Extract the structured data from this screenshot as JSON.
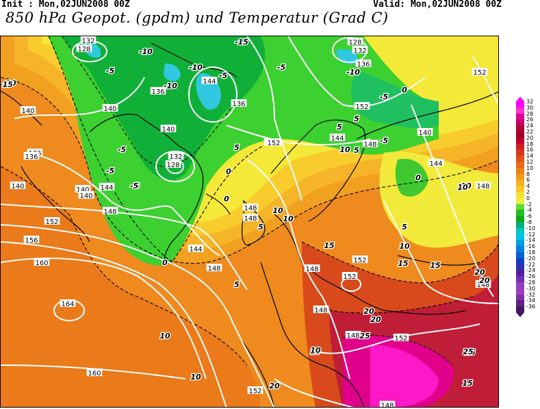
{
  "header": {
    "init": "Init : Mon,02JUN2008 00Z",
    "valid": "Valid: Mon,02JUN2008 00Z",
    "title": "850 hPa Geopot. (gpdm) und Temperatur (Grad C)"
  },
  "legend": {
    "levels": [
      "32",
      "30",
      "28",
      "26",
      "24",
      "22",
      "20",
      "18",
      "16",
      "14",
      "12",
      "10",
      "8",
      "6",
      "4",
      "2",
      "0",
      "-2",
      "-4",
      "-6",
      "-8",
      "-10",
      "-12",
      "-14",
      "-16",
      "-18",
      "-20",
      "-22",
      "-24",
      "-26",
      "-28",
      "-30",
      "-32",
      "-34",
      "-36"
    ],
    "colors": [
      "#ff00ff",
      "#ff33cc",
      "#e0009a",
      "#cc0066",
      "#b0003c",
      "#a00020",
      "#c00030",
      "#cc2020",
      "#d83818",
      "#e05018",
      "#e86818",
      "#ee8018",
      "#f09a1c",
      "#f4b020",
      "#f8c828",
      "#f8e030",
      "#e8f040",
      "#60d830",
      "#20c020",
      "#10a818",
      "#00b080",
      "#00c8c0",
      "#00c0e8",
      "#00a0e0",
      "#0080e0",
      "#0060d0",
      "#1040c0",
      "#3030b0",
      "#5020a0",
      "#7030b0",
      "#9040c0",
      "#a040c0",
      "#8030a0",
      "#602080",
      "#401860"
    ]
  },
  "geopotential_labels": [
    "128",
    "132",
    "136",
    "140",
    "144",
    "148",
    "152",
    "156",
    "160",
    "164"
  ],
  "temperature_labels": [
    "-15",
    "-10",
    "-5",
    "0",
    "5",
    "10",
    "15",
    "20",
    "25"
  ],
  "map_labels": [
    {
      "text": "132",
      "k": "g"
    },
    {
      "text": "128",
      "k": "g"
    },
    {
      "text": "128",
      "k": "g"
    },
    {
      "text": "132",
      "k": "g"
    },
    {
      "text": "136",
      "k": "g"
    },
    {
      "text": "152",
      "k": "g"
    },
    {
      "text": "136",
      "k": "g"
    },
    {
      "text": "144",
      "k": "g"
    },
    {
      "text": "136",
      "k": "g"
    },
    {
      "text": "140",
      "k": "g"
    },
    {
      "text": "140",
      "k": "g"
    },
    {
      "text": "140",
      "k": "g"
    },
    {
      "text": "140",
      "k": "g"
    },
    {
      "text": "136",
      "k": "g"
    },
    {
      "text": "132",
      "k": "g"
    },
    {
      "text": "128",
      "k": "g"
    },
    {
      "text": "152",
      "k": "g"
    },
    {
      "text": "144",
      "k": "g"
    },
    {
      "text": "148",
      "k": "g"
    },
    {
      "text": "140",
      "k": "g"
    },
    {
      "text": "144",
      "k": "g"
    },
    {
      "text": "152",
      "k": "g"
    },
    {
      "text": "148",
      "k": "g"
    },
    {
      "text": "136",
      "k": "g"
    },
    {
      "text": "140",
      "k": "g"
    },
    {
      "text": "144",
      "k": "g"
    },
    {
      "text": "148",
      "k": "g"
    },
    {
      "text": "140",
      "k": "g"
    },
    {
      "text": "152",
      "k": "g"
    },
    {
      "text": "156",
      "k": "g"
    },
    {
      "text": "148",
      "k": "g"
    },
    {
      "text": "148",
      "k": "g"
    },
    {
      "text": "144",
      "k": "g"
    },
    {
      "text": "148",
      "k": "g"
    },
    {
      "text": "152",
      "k": "g"
    },
    {
      "text": "152",
      "k": "g"
    },
    {
      "text": "148",
      "k": "g"
    },
    {
      "text": "148",
      "k": "g"
    },
    {
      "text": "160",
      "k": "g"
    },
    {
      "text": "164",
      "k": "g"
    },
    {
      "text": "148",
      "k": "g"
    },
    {
      "text": "152",
      "k": "g"
    },
    {
      "text": "148",
      "k": "g"
    },
    {
      "text": "160",
      "k": "g"
    },
    {
      "text": "152",
      "k": "g"
    },
    {
      "text": "152",
      "k": "g"
    },
    {
      "text": "148",
      "k": "g"
    },
    {
      "text": "-15",
      "k": "t"
    },
    {
      "text": "-10",
      "k": "t"
    },
    {
      "text": "-5",
      "k": "t"
    },
    {
      "text": "-10",
      "k": "t"
    },
    {
      "text": "-10",
      "k": "t"
    },
    {
      "text": "-5",
      "k": "t"
    },
    {
      "text": "-5",
      "k": "t"
    },
    {
      "text": "-10",
      "k": "t"
    },
    {
      "text": "-5",
      "k": "t"
    },
    {
      "text": "0",
      "k": "t"
    },
    {
      "text": "-5",
      "k": "t"
    },
    {
      "text": "10",
      "k": "t"
    },
    {
      "text": "5",
      "k": "t"
    },
    {
      "text": "-5",
      "k": "t"
    },
    {
      "text": "-5",
      "k": "t"
    },
    {
      "text": "5",
      "k": "t"
    },
    {
      "text": "0",
      "k": "t"
    },
    {
      "text": "5",
      "k": "t"
    },
    {
      "text": "10",
      "k": "t"
    },
    {
      "text": "-5",
      "k": "t"
    },
    {
      "text": "0",
      "k": "t"
    },
    {
      "text": "10",
      "k": "t"
    },
    {
      "text": "10",
      "k": "t"
    },
    {
      "text": "5",
      "k": "t"
    },
    {
      "text": "0",
      "k": "t"
    },
    {
      "text": "5",
      "k": "t"
    },
    {
      "text": "10",
      "k": "t"
    },
    {
      "text": "15",
      "k": "t"
    },
    {
      "text": "10",
      "k": "t"
    },
    {
      "text": "15",
      "k": "t"
    },
    {
      "text": "20",
      "k": "t"
    },
    {
      "text": "15",
      "k": "t"
    },
    {
      "text": "5",
      "k": "t"
    },
    {
      "text": "20",
      "k": "t"
    },
    {
      "text": "25",
      "k": "t"
    },
    {
      "text": "10",
      "k": "t"
    },
    {
      "text": "10",
      "k": "t"
    },
    {
      "text": "20",
      "k": "t"
    },
    {
      "text": "25",
      "k": "t"
    },
    {
      "text": "15",
      "k": "t"
    },
    {
      "text": "25",
      "k": "t"
    },
    {
      "text": "10",
      "k": "t"
    },
    {
      "text": "0",
      "k": "t"
    },
    {
      "text": "5",
      "k": "t"
    },
    {
      "text": "20",
      "k": "t"
    },
    {
      "text": "10",
      "k": "t"
    },
    {
      "text": "-15",
      "k": "t"
    },
    {
      "text": "10",
      "k": "t"
    },
    {
      "text": "-5",
      "k": "t"
    },
    {
      "text": "20",
      "k": "t"
    }
  ]
}
